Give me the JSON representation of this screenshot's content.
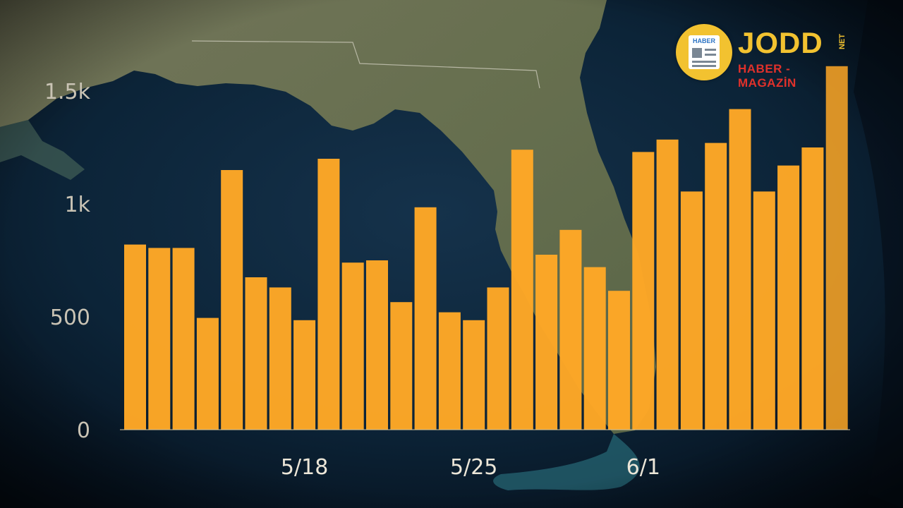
{
  "brand": {
    "icon_text": "HABER",
    "name": "JODD",
    "suffix": "NET",
    "tagline": "HABER - MAGAZİN",
    "color_primary": "#f2c230",
    "color_tagline": "#e0312b"
  },
  "chart_data": {
    "type": "bar",
    "title": "",
    "xlabel": "",
    "ylabel": "",
    "ylim": [
      0,
      1500
    ],
    "y_ticks": [
      {
        "value": 0,
        "label": "0"
      },
      {
        "value": 500,
        "label": "500"
      },
      {
        "value": 1000,
        "label": "1k"
      },
      {
        "value": 1500,
        "label": "1.5k"
      }
    ],
    "x_tick_labels": [
      {
        "index": 7,
        "label": "5/18"
      },
      {
        "index": 14,
        "label": "5/25"
      },
      {
        "index": 21,
        "label": "6/1"
      }
    ],
    "bar_color": "#ffa826",
    "values": [
      820,
      805,
      805,
      495,
      1150,
      675,
      630,
      485,
      1200,
      740,
      750,
      565,
      985,
      520,
      485,
      630,
      1240,
      775,
      885,
      720,
      615,
      1230,
      1285,
      1055,
      1270,
      1420,
      1055,
      1170,
      1250,
      1610
    ]
  }
}
